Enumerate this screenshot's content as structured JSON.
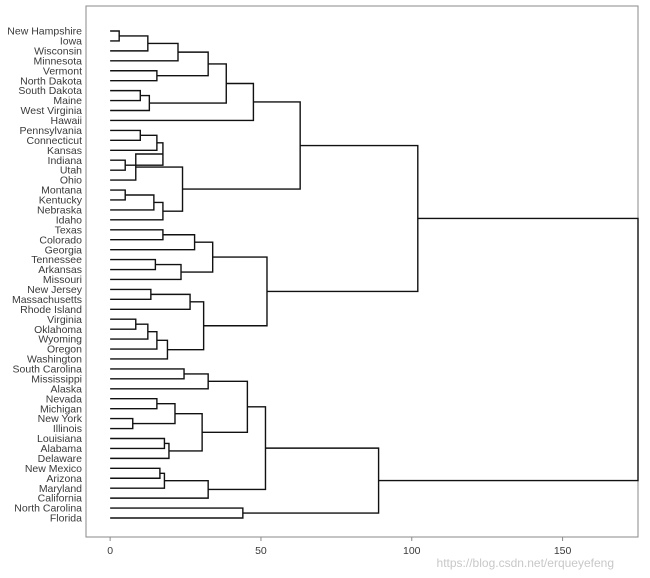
{
  "chart_data": {
    "type": "dendrogram",
    "xlim": [
      -8,
      175
    ],
    "x_ticks": [
      0,
      50,
      100,
      150
    ],
    "leaves": [
      "New Hampshire",
      "Iowa",
      "Wisconsin",
      "Minnesota",
      "Vermont",
      "North Dakota",
      "South Dakota",
      "Maine",
      "West Virginia",
      "Hawaii",
      "Pennsylvania",
      "Connecticut",
      "Kansas",
      "Indiana",
      "Utah",
      "Ohio",
      "Montana",
      "Kentucky",
      "Nebraska",
      "Idaho",
      "Texas",
      "Colorado",
      "Georgia",
      "Tennessee",
      "Arkansas",
      "Missouri",
      "New Jersey",
      "Massachusetts",
      "Rhode Island",
      "Virginia",
      "Oklahoma",
      "Wyoming",
      "Oregon",
      "Washington",
      "South Carolina",
      "Mississippi",
      "Alaska",
      "Nevada",
      "Michigan",
      "New York",
      "Illinois",
      "Louisiana",
      "Alabama",
      "Delaware",
      "New Mexico",
      "Arizona",
      "Maryland",
      "California",
      "North Carolina",
      "Florida"
    ],
    "merges": [
      {
        "id": "c1",
        "a": "New Hampshire",
        "b": "Iowa",
        "h": 3
      },
      {
        "id": "c2",
        "a": "c1",
        "b": "Wisconsin",
        "h": 12.5
      },
      {
        "id": "c3",
        "a": "c2",
        "b": "Minnesota",
        "h": 22.5
      },
      {
        "id": "c4",
        "a": "Vermont",
        "b": "North Dakota",
        "h": 15.5
      },
      {
        "id": "c5",
        "a": "c3",
        "b": "c4",
        "h": 32.5
      },
      {
        "id": "c6",
        "a": "South Dakota",
        "b": "Maine",
        "h": 10
      },
      {
        "id": "c7",
        "a": "c6",
        "b": "West Virginia",
        "h": 13
      },
      {
        "id": "c8",
        "a": "c5",
        "b": "c7",
        "h": 38.5
      },
      {
        "id": "c9",
        "a": "c8",
        "b": "Hawaii",
        "h": 47.5
      },
      {
        "id": "c10",
        "a": "Pennsylvania",
        "b": "Connecticut",
        "h": 10
      },
      {
        "id": "c11",
        "a": "c10",
        "b": "Kansas",
        "h": 15.5
      },
      {
        "id": "c12",
        "a": "Indiana",
        "b": "Utah",
        "h": 5
      },
      {
        "id": "c13",
        "a": "c11",
        "b": "c12",
        "h": 17.5
      },
      {
        "id": "c14",
        "a": "c13",
        "b": "Ohio",
        "h": 8.5
      },
      {
        "id": "c15",
        "a": "Montana",
        "b": "Kentucky",
        "h": 5
      },
      {
        "id": "c16",
        "a": "c15",
        "b": "Nebraska",
        "h": 14.5
      },
      {
        "id": "c17",
        "a": "c16",
        "b": "Idaho",
        "h": 17.5
      },
      {
        "id": "c18",
        "a": "c14",
        "b": "c17",
        "h": 24
      },
      {
        "id": "c19",
        "a": "c9",
        "b": "c18",
        "h": 63
      },
      {
        "id": "c20",
        "a": "Texas",
        "b": "Colorado",
        "h": 17.5
      },
      {
        "id": "c21",
        "a": "c20",
        "b": "Georgia",
        "h": 28
      },
      {
        "id": "c22",
        "a": "Tennessee",
        "b": "Arkansas",
        "h": 15
      },
      {
        "id": "c23",
        "a": "c22",
        "b": "Missouri",
        "h": 23.5
      },
      {
        "id": "c24",
        "a": "c21",
        "b": "c23",
        "h": 34
      },
      {
        "id": "c25",
        "a": "New Jersey",
        "b": "Massachusetts",
        "h": 13.5
      },
      {
        "id": "c26",
        "a": "c25",
        "b": "Rhode Island",
        "h": 26.5
      },
      {
        "id": "c27",
        "a": "Virginia",
        "b": "Oklahoma",
        "h": 8.5
      },
      {
        "id": "c28",
        "a": "c27",
        "b": "Wyoming",
        "h": 12.5
      },
      {
        "id": "c29",
        "a": "c28",
        "b": "Oregon",
        "h": 15.5
      },
      {
        "id": "c30",
        "a": "c29",
        "b": "Washington",
        "h": 19
      },
      {
        "id": "c31",
        "a": "c26",
        "b": "c30",
        "h": 31
      },
      {
        "id": "c32",
        "a": "c24",
        "b": "c31",
        "h": 52
      },
      {
        "id": "c33",
        "a": "c19",
        "b": "c32",
        "h": 102
      },
      {
        "id": "c34",
        "a": "South Carolina",
        "b": "Mississippi",
        "h": 24.5
      },
      {
        "id": "c35",
        "a": "c34",
        "b": "Alaska",
        "h": 32.5
      },
      {
        "id": "c36",
        "a": "Nevada",
        "b": "Michigan",
        "h": 15.5
      },
      {
        "id": "c37",
        "a": "New York",
        "b": "Illinois",
        "h": 7.5
      },
      {
        "id": "c38",
        "a": "c36",
        "b": "c37",
        "h": 21.5
      },
      {
        "id": "c39",
        "a": "Louisiana",
        "b": "Alabama",
        "h": 18
      },
      {
        "id": "c40",
        "a": "c39",
        "b": "Delaware",
        "h": 19.5
      },
      {
        "id": "c41",
        "a": "c38",
        "b": "c40",
        "h": 30.5
      },
      {
        "id": "c42",
        "a": "c35",
        "b": "c41",
        "h": 45.5
      },
      {
        "id": "c43",
        "a": "New Mexico",
        "b": "Arizona",
        "h": 16.5
      },
      {
        "id": "c44",
        "a": "c43",
        "b": "Maryland",
        "h": 18
      },
      {
        "id": "c45",
        "a": "c44",
        "b": "California",
        "h": 32.5
      },
      {
        "id": "c46",
        "a": "c42",
        "b": "c45",
        "h": 51.5
      },
      {
        "id": "c47",
        "a": "North Carolina",
        "b": "Florida",
        "h": 44
      },
      {
        "id": "c48",
        "a": "c46",
        "b": "c47",
        "h": 89
      },
      {
        "id": "c49",
        "a": "c33",
        "b": "c48",
        "h": 175
      }
    ],
    "title": "",
    "xlabel": "",
    "ylabel": "",
    "grid": false,
    "legend": "none"
  },
  "watermark": "https://blog.csdn.net/erqueyefeng"
}
